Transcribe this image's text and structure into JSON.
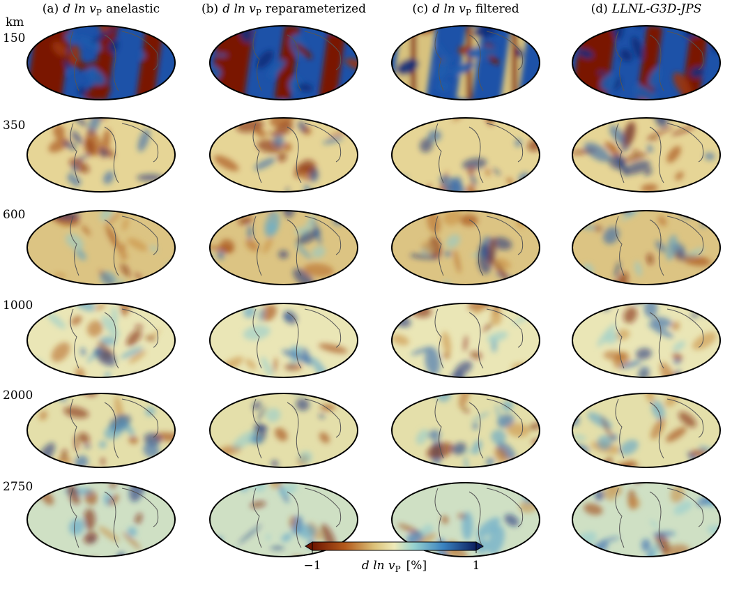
{
  "columns": [
    {
      "tag": "(a)",
      "quantity": "d ln v",
      "sub": "P",
      "desc": "anelastic"
    },
    {
      "tag": "(b)",
      "quantity": "d ln v",
      "sub": "P",
      "desc": "reparameterized"
    },
    {
      "tag": "(c)",
      "quantity": "d ln v",
      "sub": "P",
      "desc": "filtered"
    },
    {
      "tag": "(d)",
      "model": "LLNL-G3D-JPS"
    }
  ],
  "depth_unit": "km",
  "depths": [
    "150",
    "350",
    "600",
    "1000",
    "2000",
    "2750"
  ],
  "colorbar": {
    "label": "d ln v",
    "sub": "P",
    "unit": "[%]",
    "lim": [
      -1,
      1
    ],
    "ticks": [
      {
        "value": -1,
        "label": "−1"
      },
      1
    ]
  }
}
